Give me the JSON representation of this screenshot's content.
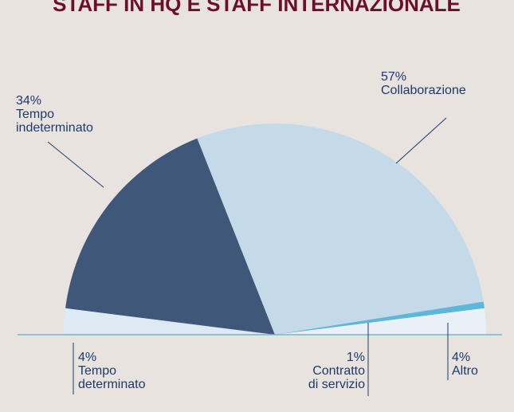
{
  "chart_data": {
    "type": "semi-pie",
    "title": "STAFF IN HQ E STAFF INTERNAZIONALE",
    "categories": [
      "Tempo\ndeterminato",
      "Tempo\nindeterminato",
      "Collaborazione",
      "Contratto\ndi servizio",
      "Altro"
    ],
    "values": [
      4,
      34,
      57,
      1,
      4
    ],
    "value_labels": [
      "4%",
      "34%",
      "57%",
      "1%",
      "4%"
    ],
    "colors": [
      "#ddeaf3",
      "#3f5779",
      "#c5dae8",
      "#5bb8d8",
      "#e9f1f6"
    ]
  }
}
